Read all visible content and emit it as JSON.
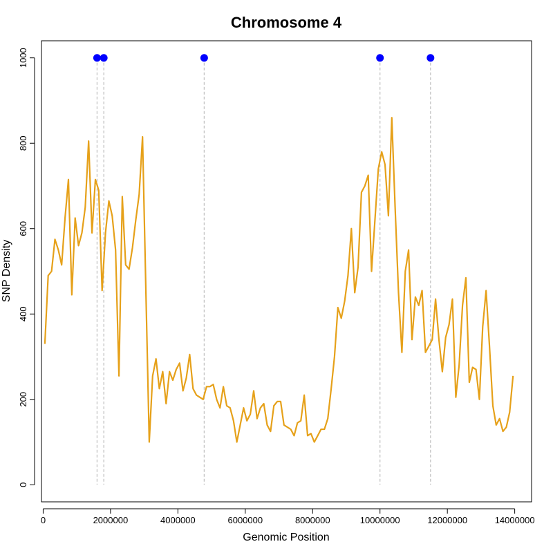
{
  "chart_data": {
    "type": "line",
    "title": "Chromosome 4",
    "xlabel": "Genomic Position",
    "ylabel": "SNP Density",
    "xlim": [
      -50000,
      14500000
    ],
    "ylim": [
      -40,
      1040
    ],
    "x_ticks": [
      0,
      2000000,
      4000000,
      6000000,
      8000000,
      10000000,
      12000000,
      14000000
    ],
    "y_ticks": [
      0,
      200,
      400,
      600,
      800,
      1000
    ],
    "x_tick_labels": [
      "0",
      "2000000",
      "4000000",
      "6000000",
      "8000000",
      "10000000",
      "12000000",
      "14000000"
    ],
    "y_tick_labels": [
      "0",
      "200",
      "400",
      "600",
      "800",
      "1000"
    ],
    "grid": false,
    "series": [
      {
        "color": "#E6A11A",
        "x": [
          50000,
          150000,
          250000,
          350000,
          450000,
          550000,
          650000,
          750000,
          850000,
          950000,
          1050000,
          1150000,
          1250000,
          1350000,
          1450000,
          1550000,
          1650000,
          1750000,
          1850000,
          1950000,
          2050000,
          2150000,
          2250000,
          2350000,
          2450000,
          2550000,
          2650000,
          2750000,
          2850000,
          2950000,
          3050000,
          3150000,
          3250000,
          3350000,
          3450000,
          3550000,
          3650000,
          3750000,
          3850000,
          3950000,
          4050000,
          4150000,
          4250000,
          4350000,
          4450000,
          4550000,
          4650000,
          4750000,
          4850000,
          4950000,
          5050000,
          5150000,
          5250000,
          5350000,
          5450000,
          5550000,
          5650000,
          5750000,
          5850000,
          5950000,
          6050000,
          6150000,
          6250000,
          6350000,
          6450000,
          6550000,
          6650000,
          6750000,
          6850000,
          6950000,
          7050000,
          7150000,
          7250000,
          7350000,
          7450000,
          7550000,
          7650000,
          7750000,
          7850000,
          7950000,
          8050000,
          8150000,
          8250000,
          8350000,
          8450000,
          8550000,
          8650000,
          8750000,
          8850000,
          8950000,
          9050000,
          9150000,
          9250000,
          9350000,
          9450000,
          9550000,
          9650000,
          9750000,
          9850000,
          9950000,
          10050000,
          10150000,
          10250000,
          10350000,
          10450000,
          10550000,
          10650000,
          10750000,
          10850000,
          10950000,
          11050000,
          11150000,
          11250000,
          11350000,
          11450000,
          11550000,
          11650000,
          11750000,
          11850000,
          11950000,
          12050000,
          12150000,
          12250000,
          12350000,
          12450000,
          12550000,
          12650000,
          12750000,
          12850000,
          12950000,
          13050000,
          13150000,
          13250000,
          13350000,
          13450000,
          13550000,
          13650000,
          13750000,
          13850000,
          13950000
        ],
        "y": [
          330,
          490,
          500,
          575,
          550,
          515,
          625,
          715,
          445,
          625,
          560,
          590,
          650,
          805,
          590,
          715,
          690,
          455,
          590,
          665,
          630,
          550,
          255,
          675,
          515,
          505,
          555,
          620,
          680,
          815,
          450,
          100,
          255,
          295,
          225,
          265,
          190,
          265,
          245,
          270,
          285,
          220,
          250,
          305,
          225,
          210,
          205,
          200,
          230,
          230,
          235,
          200,
          180,
          230,
          185,
          180,
          150,
          100,
          140,
          180,
          150,
          165,
          220,
          155,
          180,
          190,
          140,
          125,
          185,
          195,
          195,
          140,
          135,
          130,
          115,
          145,
          150,
          210,
          115,
          120,
          100,
          115,
          130,
          130,
          155,
          225,
          300,
          415,
          390,
          430,
          490,
          600,
          450,
          510,
          685,
          700,
          725,
          500,
          620,
          740,
          780,
          750,
          630,
          860,
          650,
          450,
          310,
          500,
          550,
          340,
          440,
          420,
          455,
          310,
          325,
          340,
          435,
          340,
          265,
          345,
          375,
          435,
          205,
          280,
          420,
          485,
          240,
          275,
          270,
          200,
          370,
          455,
          325,
          185,
          140,
          155,
          125,
          135,
          170,
          255
        ]
      }
    ],
    "markers": {
      "color": "#0000FF",
      "y": 1000,
      "x": [
        1600000,
        1800000,
        4780000,
        10000000,
        11500000
      ]
    },
    "marker_line_color": "#BEBEBE"
  }
}
